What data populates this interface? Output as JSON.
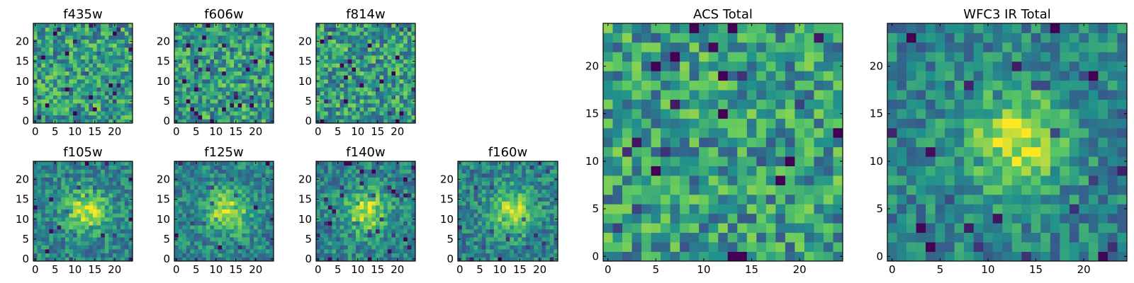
{
  "figure_description_hidden": null,
  "chart_data": [
    {
      "type": "heatmap",
      "title": "f435w",
      "grid_size": 25,
      "xticks": [
        "0",
        "5",
        "10",
        "15",
        "20"
      ],
      "yticks": [
        "0",
        "5",
        "10",
        "15",
        "20"
      ],
      "colormap": "viridis",
      "xlim": [
        0,
        25
      ],
      "ylim": [
        0,
        25
      ],
      "central_source": false,
      "seed": 11
    },
    {
      "type": "heatmap",
      "title": "f606w",
      "grid_size": 25,
      "xticks": [
        "0",
        "5",
        "10",
        "15",
        "20"
      ],
      "yticks": [
        "0",
        "5",
        "10",
        "15",
        "20"
      ],
      "colormap": "viridis",
      "xlim": [
        0,
        25
      ],
      "ylim": [
        0,
        25
      ],
      "central_source": false,
      "seed": 23
    },
    {
      "type": "heatmap",
      "title": "f814w",
      "grid_size": 25,
      "xticks": [
        "0",
        "5",
        "10",
        "15",
        "20"
      ],
      "yticks": [
        "0",
        "5",
        "10",
        "15",
        "20"
      ],
      "colormap": "viridis",
      "xlim": [
        0,
        25
      ],
      "ylim": [
        0,
        25
      ],
      "central_source": false,
      "seed": 37
    },
    {
      "type": "heatmap",
      "title": "f105w",
      "grid_size": 25,
      "xticks": [
        "0",
        "5",
        "10",
        "15",
        "20"
      ],
      "yticks": [
        "0",
        "5",
        "10",
        "15",
        "20"
      ],
      "colormap": "viridis",
      "xlim": [
        0,
        25
      ],
      "ylim": [
        0,
        25
      ],
      "central_source": true,
      "source_center": [
        13,
        12
      ],
      "seed": 41
    },
    {
      "type": "heatmap",
      "title": "f125w",
      "grid_size": 25,
      "xticks": [
        "0",
        "5",
        "10",
        "15",
        "20"
      ],
      "yticks": [
        "0",
        "5",
        "10",
        "15",
        "20"
      ],
      "colormap": "viridis",
      "xlim": [
        0,
        25
      ],
      "ylim": [
        0,
        25
      ],
      "central_source": true,
      "source_center": [
        13,
        12
      ],
      "seed": 53
    },
    {
      "type": "heatmap",
      "title": "f140w",
      "grid_size": 25,
      "xticks": [
        "0",
        "5",
        "10",
        "15",
        "20"
      ],
      "yticks": [
        "0",
        "5",
        "10",
        "15",
        "20"
      ],
      "colormap": "viridis",
      "xlim": [
        0,
        25
      ],
      "ylim": [
        0,
        25
      ],
      "central_source": true,
      "source_center": [
        12,
        12
      ],
      "seed": 67
    },
    {
      "type": "heatmap",
      "title": "f160w",
      "grid_size": 25,
      "xticks": [
        "0",
        "5",
        "10",
        "15",
        "20"
      ],
      "yticks": [
        "0",
        "5",
        "10",
        "15",
        "20"
      ],
      "colormap": "viridis",
      "xlim": [
        0,
        25
      ],
      "ylim": [
        0,
        25
      ],
      "central_source": true,
      "source_center": [
        13,
        12
      ],
      "seed": 79
    },
    {
      "type": "heatmap",
      "title": "ACS Total",
      "grid_size": 25,
      "xticks": [
        "0",
        "5",
        "10",
        "15",
        "20"
      ],
      "yticks": [
        "0",
        "5",
        "10",
        "15",
        "20"
      ],
      "colormap": "viridis",
      "xlim": [
        0,
        25
      ],
      "ylim": [
        0,
        25
      ],
      "central_source": false,
      "seed": 97
    },
    {
      "type": "heatmap",
      "title": "WFC3 IR Total",
      "grid_size": 25,
      "xticks": [
        "0",
        "5",
        "10",
        "15",
        "20"
      ],
      "yticks": [
        "0",
        "5",
        "10",
        "15",
        "20"
      ],
      "colormap": "viridis",
      "xlim": [
        0,
        25
      ],
      "ylim": [
        0,
        25
      ],
      "central_source": true,
      "source_center": [
        13,
        12
      ],
      "seed": 131
    }
  ]
}
